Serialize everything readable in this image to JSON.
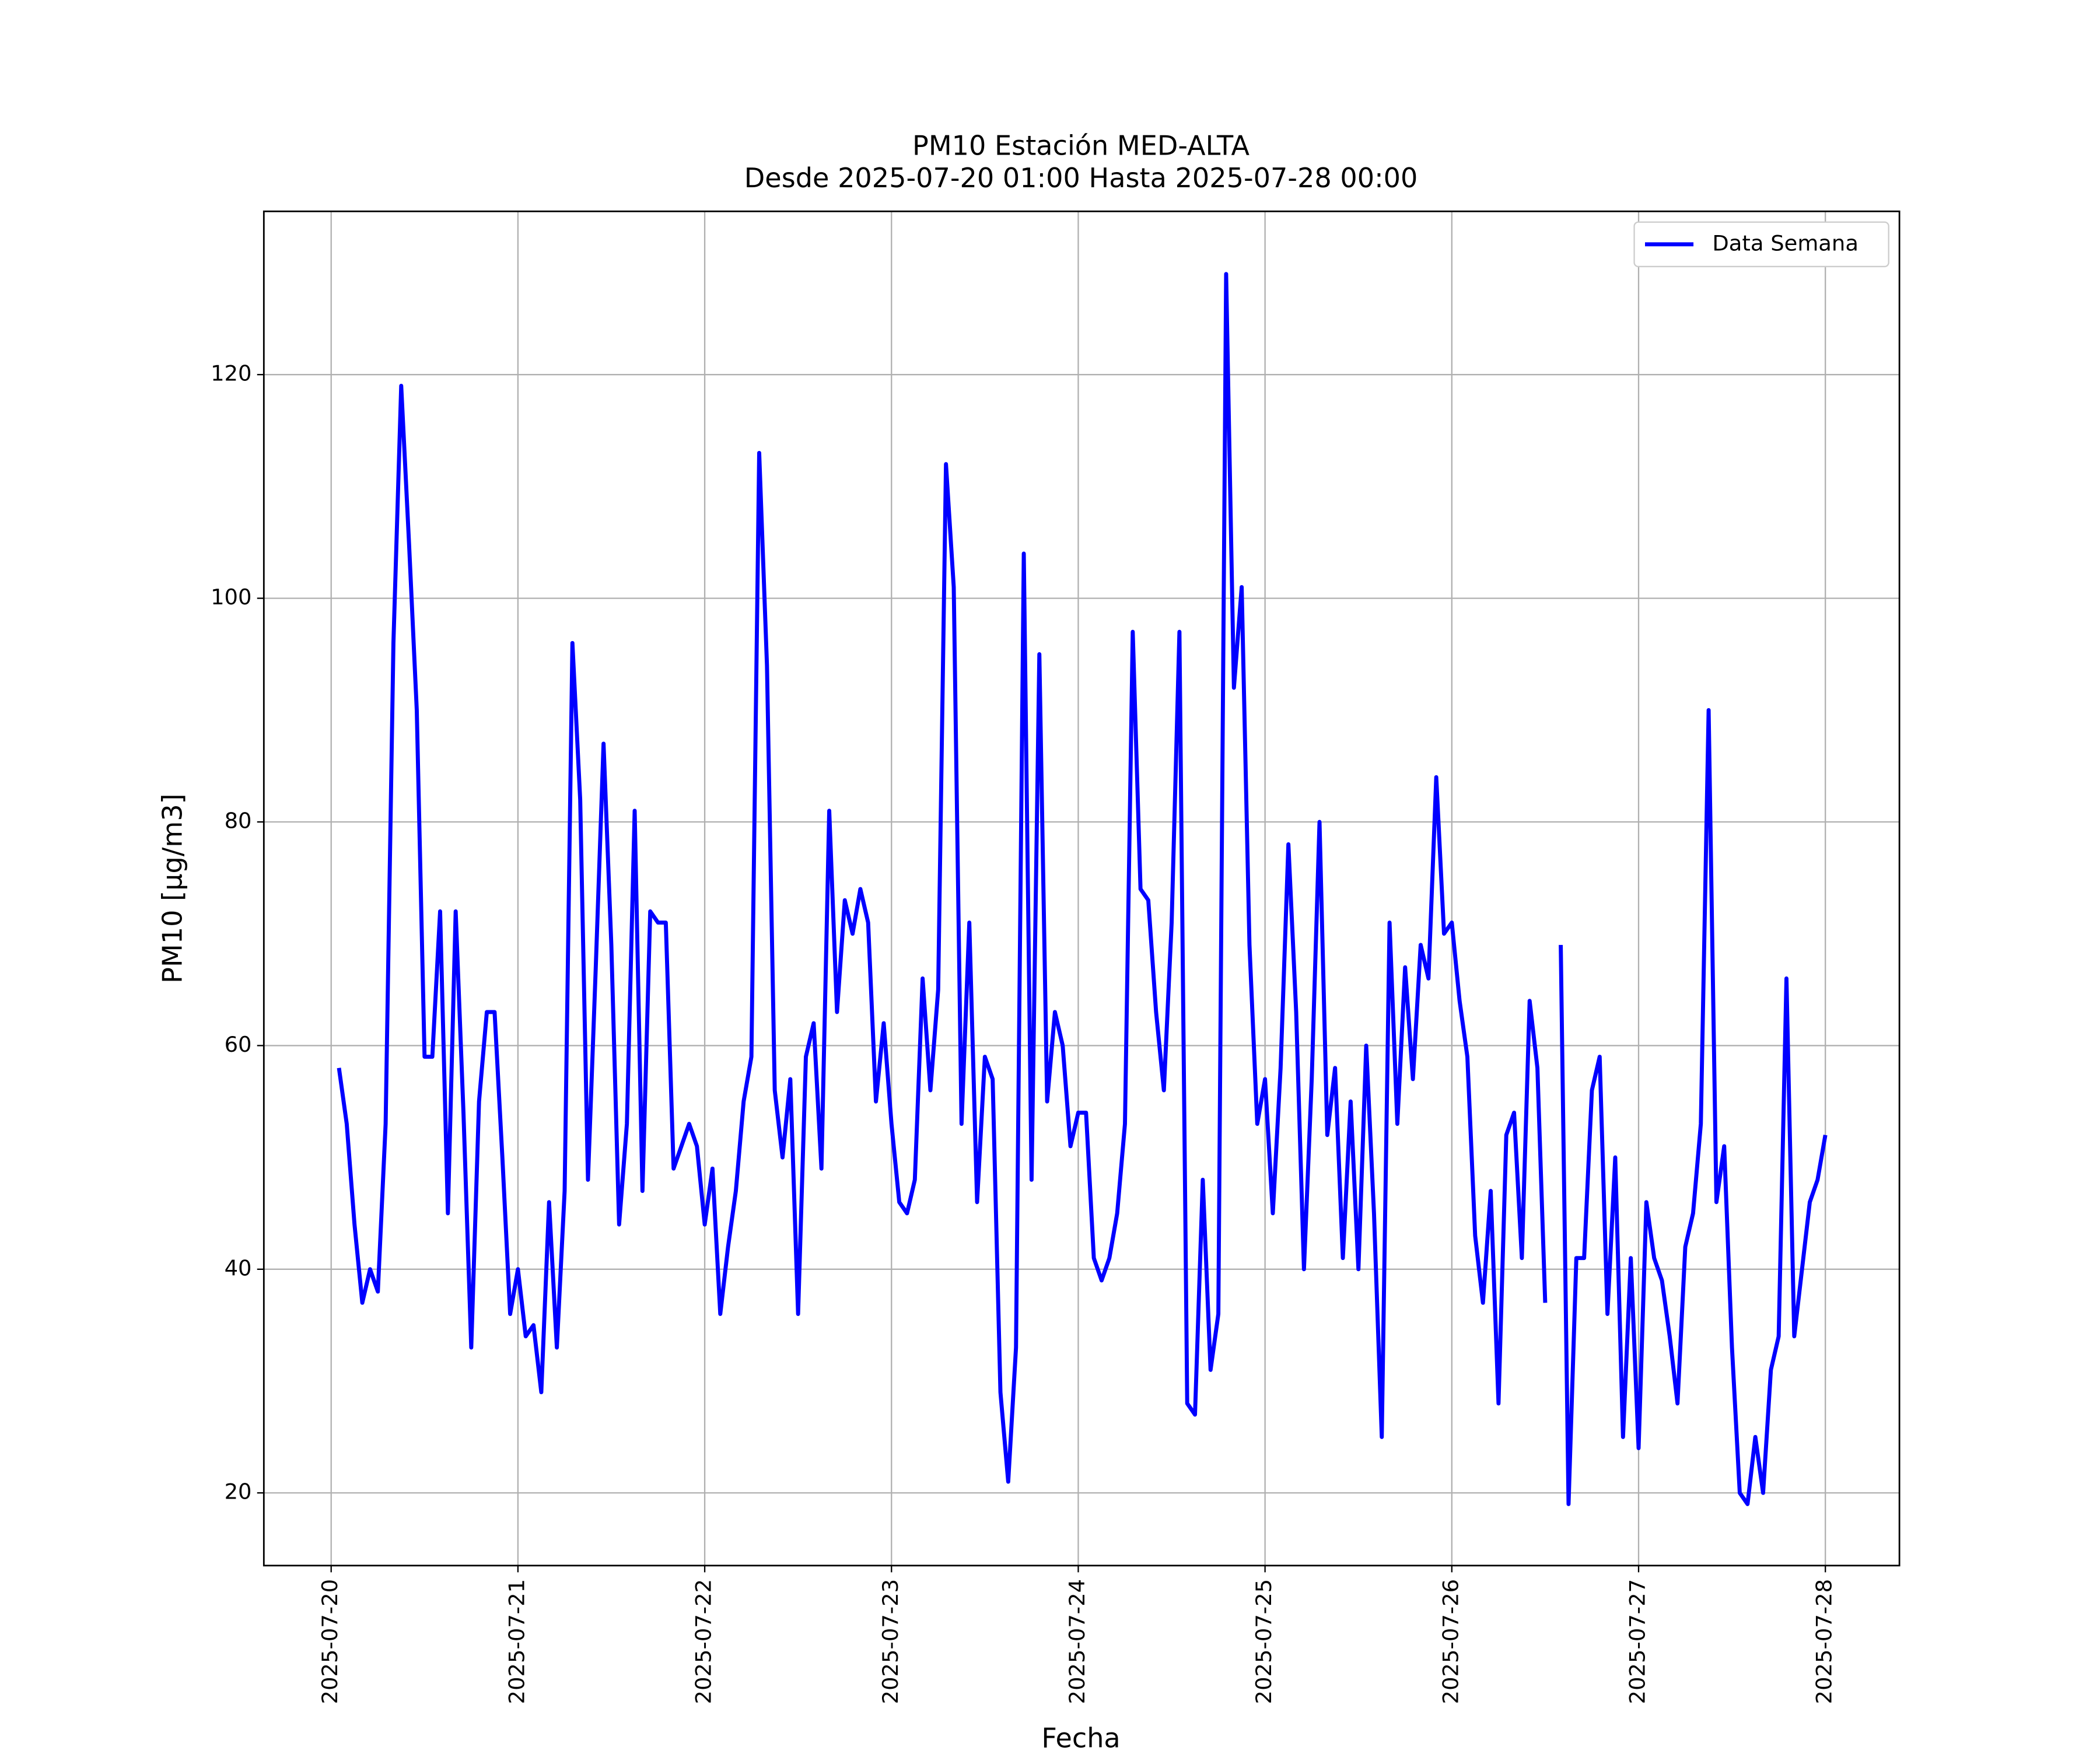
{
  "chart_data": {
    "type": "line",
    "title": "PM10 Estación MED-ALTA",
    "subtitle": "Desde 2025-07-20 01:00 Hasta 2025-07-28 00:00",
    "xlabel": "Fecha",
    "ylabel": "PM10 [μg/m3]",
    "x": [
      "2025-07-20 01:00",
      "2025-07-20 02:00",
      "2025-07-20 03:00",
      "2025-07-20 04:00",
      "2025-07-20 05:00",
      "2025-07-20 06:00",
      "2025-07-20 07:00",
      "2025-07-20 08:00",
      "2025-07-20 09:00",
      "2025-07-20 10:00",
      "2025-07-20 11:00",
      "2025-07-20 12:00",
      "2025-07-20 13:00",
      "2025-07-20 14:00",
      "2025-07-20 15:00",
      "2025-07-20 16:00",
      "2025-07-20 17:00",
      "2025-07-20 18:00",
      "2025-07-20 19:00",
      "2025-07-20 20:00",
      "2025-07-20 21:00",
      "2025-07-20 22:00",
      "2025-07-20 23:00",
      "2025-07-21 00:00",
      "2025-07-21 01:00",
      "2025-07-21 02:00",
      "2025-07-21 03:00",
      "2025-07-21 04:00",
      "2025-07-21 05:00",
      "2025-07-21 06:00",
      "2025-07-21 07:00",
      "2025-07-21 08:00",
      "2025-07-21 09:00",
      "2025-07-21 10:00",
      "2025-07-21 11:00",
      "2025-07-21 12:00",
      "2025-07-21 13:00",
      "2025-07-21 14:00",
      "2025-07-21 15:00",
      "2025-07-21 16:00",
      "2025-07-21 17:00",
      "2025-07-21 18:00",
      "2025-07-21 19:00",
      "2025-07-21 20:00",
      "2025-07-21 21:00",
      "2025-07-21 22:00",
      "2025-07-21 23:00",
      "2025-07-22 00:00",
      "2025-07-22 01:00",
      "2025-07-22 02:00",
      "2025-07-22 03:00",
      "2025-07-22 04:00",
      "2025-07-22 05:00",
      "2025-07-22 06:00",
      "2025-07-22 07:00",
      "2025-07-22 08:00",
      "2025-07-22 09:00",
      "2025-07-22 10:00",
      "2025-07-22 11:00",
      "2025-07-22 12:00",
      "2025-07-22 13:00",
      "2025-07-22 14:00",
      "2025-07-22 15:00",
      "2025-07-22 16:00",
      "2025-07-22 17:00",
      "2025-07-22 18:00",
      "2025-07-22 19:00",
      "2025-07-22 20:00",
      "2025-07-22 21:00",
      "2025-07-22 22:00",
      "2025-07-22 23:00",
      "2025-07-23 00:00",
      "2025-07-23 01:00",
      "2025-07-23 02:00",
      "2025-07-23 03:00",
      "2025-07-23 04:00",
      "2025-07-23 05:00",
      "2025-07-23 06:00",
      "2025-07-23 07:00",
      "2025-07-23 08:00",
      "2025-07-23 09:00",
      "2025-07-23 10:00",
      "2025-07-23 11:00",
      "2025-07-23 12:00",
      "2025-07-23 13:00",
      "2025-07-23 14:00",
      "2025-07-23 15:00",
      "2025-07-23 16:00",
      "2025-07-23 17:00",
      "2025-07-23 18:00",
      "2025-07-23 19:00",
      "2025-07-23 20:00",
      "2025-07-23 21:00",
      "2025-07-23 22:00",
      "2025-07-23 23:00",
      "2025-07-24 00:00",
      "2025-07-24 01:00",
      "2025-07-24 02:00",
      "2025-07-24 03:00",
      "2025-07-24 04:00",
      "2025-07-24 05:00",
      "2025-07-24 06:00",
      "2025-07-24 07:00",
      "2025-07-24 08:00",
      "2025-07-24 09:00",
      "2025-07-24 10:00",
      "2025-07-24 11:00",
      "2025-07-24 12:00",
      "2025-07-24 13:00",
      "2025-07-24 14:00",
      "2025-07-24 15:00",
      "2025-07-24 16:00",
      "2025-07-24 17:00",
      "2025-07-24 18:00",
      "2025-07-24 19:00",
      "2025-07-24 20:00",
      "2025-07-24 21:00",
      "2025-07-24 22:00",
      "2025-07-24 23:00",
      "2025-07-25 00:00",
      "2025-07-25 01:00",
      "2025-07-25 02:00",
      "2025-07-25 03:00",
      "2025-07-25 04:00",
      "2025-07-25 05:00",
      "2025-07-25 06:00",
      "2025-07-25 07:00",
      "2025-07-25 08:00",
      "2025-07-25 09:00",
      "2025-07-25 10:00",
      "2025-07-25 11:00",
      "2025-07-25 12:00",
      "2025-07-25 13:00",
      "2025-07-25 14:00",
      "2025-07-25 15:00",
      "2025-07-25 16:00",
      "2025-07-25 17:00",
      "2025-07-25 18:00",
      "2025-07-25 19:00",
      "2025-07-25 20:00",
      "2025-07-25 21:00",
      "2025-07-25 22:00",
      "2025-07-25 23:00",
      "2025-07-26 00:00",
      "2025-07-26 01:00",
      "2025-07-26 02:00",
      "2025-07-26 03:00",
      "2025-07-26 04:00",
      "2025-07-26 05:00",
      "2025-07-26 06:00",
      "2025-07-26 07:00",
      "2025-07-26 08:00",
      "2025-07-26 09:00",
      "2025-07-26 10:00",
      "2025-07-26 11:00",
      "2025-07-26 12:00",
      "2025-07-26 13:00",
      "2025-07-26 14:00",
      "2025-07-26 15:00",
      "2025-07-26 16:00",
      "2025-07-26 17:00",
      "2025-07-26 18:00",
      "2025-07-26 19:00",
      "2025-07-26 20:00",
      "2025-07-26 21:00",
      "2025-07-26 22:00",
      "2025-07-26 23:00",
      "2025-07-27 00:00",
      "2025-07-27 01:00",
      "2025-07-27 02:00",
      "2025-07-27 03:00",
      "2025-07-27 04:00",
      "2025-07-27 05:00",
      "2025-07-27 06:00",
      "2025-07-27 07:00",
      "2025-07-27 08:00",
      "2025-07-27 09:00",
      "2025-07-27 10:00",
      "2025-07-27 11:00",
      "2025-07-27 12:00",
      "2025-07-27 13:00",
      "2025-07-27 14:00",
      "2025-07-27 15:00",
      "2025-07-27 16:00",
      "2025-07-27 17:00",
      "2025-07-27 18:00",
      "2025-07-27 19:00",
      "2025-07-27 20:00",
      "2025-07-27 21:00",
      "2025-07-27 22:00",
      "2025-07-27 23:00",
      "2025-07-28 00:00"
    ],
    "series": [
      {
        "name": "Data Semana",
        "color": "#0000ff",
        "values": [
          58,
          53,
          44,
          37,
          40,
          38,
          53,
          96,
          119,
          105,
          90,
          59,
          59,
          72,
          45,
          72,
          54,
          33,
          55,
          63,
          63,
          50,
          36,
          40,
          34,
          35,
          29,
          46,
          33,
          47,
          96,
          82,
          48,
          67,
          87,
          69,
          44,
          53,
          81,
          47,
          72,
          71,
          71,
          49,
          51,
          53,
          51,
          44,
          49,
          36,
          42,
          47,
          55,
          59,
          113,
          94,
          56,
          50,
          57,
          36,
          59,
          62,
          49,
          81,
          63,
          73,
          70,
          74,
          71,
          55,
          62,
          53,
          46,
          45,
          48,
          66,
          56,
          65,
          112,
          101,
          53,
          71,
          46,
          59,
          57,
          29,
          21,
          33,
          104,
          48,
          95,
          55,
          63,
          60,
          51,
          54,
          54,
          41,
          39,
          41,
          45,
          53,
          97,
          74,
          73,
          63,
          56,
          71,
          97,
          28,
          27,
          48,
          31,
          36,
          129,
          92,
          101,
          69,
          53,
          57,
          45,
          58,
          78,
          63,
          40,
          57,
          80,
          52,
          58,
          41,
          55,
          40,
          60,
          45,
          25,
          71,
          53,
          67,
          57,
          69,
          66,
          84,
          70,
          71,
          64,
          59,
          43,
          37,
          47,
          28,
          52,
          54,
          41,
          64,
          58,
          37,
          null,
          69,
          19,
          41,
          41,
          56,
          59,
          36,
          50,
          25,
          41,
          24,
          46,
          41,
          39,
          34,
          28,
          42,
          45,
          53,
          90,
          46,
          51,
          33,
          20,
          19,
          25,
          20,
          31,
          34,
          66,
          34,
          40,
          46,
          48,
          52
        ]
      }
    ],
    "xlim": [
      "2025-07-19 15:21",
      "2025-07-28 09:31"
    ],
    "xticks": [
      "2025-07-20",
      "2025-07-21",
      "2025-07-22",
      "2025-07-23",
      "2025-07-24",
      "2025-07-25",
      "2025-07-26",
      "2025-07-27",
      "2025-07-28"
    ],
    "ylim": [
      13.5,
      134.6
    ],
    "yticks": [
      20,
      40,
      60,
      80,
      100,
      120
    ],
    "grid": true,
    "legend": "upper right"
  }
}
